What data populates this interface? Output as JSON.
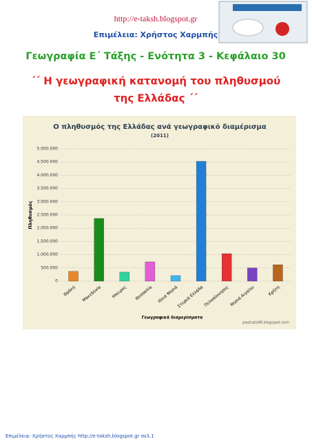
{
  "header": {
    "url": "http://e-taksh.blogspot.gr",
    "editor": "Επιμέλεια: Χρήστος Χαρμπής",
    "subject": "Γεωγραφία Ε΄ Τάξης - Ενότητα 3 - Κεφάλαιο 30",
    "title_line1": "΄΄ Η γεωγραφική κατανομή του πληθυσμού",
    "title_line2": "της Ελλάδας ΄΄"
  },
  "chart_data": {
    "type": "bar",
    "title": "Ο πληθυσμός της Ελλάδας ανά γεωγραφικό διαμέρισμα",
    "subtitle": "(2011)",
    "y_label": "Πληθυσμός",
    "x_label": "Γεωγραφικά διαμερίσματα",
    "watermark": "podcats98.blogspot.com",
    "categories": [
      "Θράκη",
      "Μακεδονία",
      "Ήπειρος",
      "Θεσσαλία",
      "Ιόνια Νησιά",
      "Στερεά Ελλάδα",
      "Πελοπόννησος",
      "Νησιά Αιγαίου",
      "Κρήτη"
    ],
    "values": [
      370000,
      2370000,
      340000,
      730000,
      210000,
      4530000,
      1040000,
      500000,
      620000
    ],
    "colors": [
      "#e8862a",
      "#1a8c1a",
      "#33d1a0",
      "#e45ed6",
      "#3cb6f2",
      "#1f80d8",
      "#e63232",
      "#7b43c2",
      "#b8651f"
    ],
    "ylim": [
      0,
      5000000
    ],
    "yticks": [
      0,
      {
        "value": 500000,
        "label": "500.000"
      },
      {
        "value": 1000000,
        "label": "1.000.000"
      },
      {
        "value": 1500000,
        "label": "1.500.000"
      },
      {
        "value": 2000000,
        "label": "2.000.000"
      },
      {
        "value": 2500000,
        "label": "2.500.000"
      },
      {
        "value": 3000000,
        "label": "3.000.000"
      },
      {
        "value": 3500000,
        "label": "3.500.000"
      },
      {
        "value": 4000000,
        "label": "4.000.000"
      },
      {
        "value": 4500000,
        "label": "4.500.000"
      },
      {
        "value": 5000000,
        "label": "5.000.000"
      }
    ],
    "grid": true
  },
  "footer": "Επιμέλεια: Χρήστος Χαρμπής http://e-taksh.blogspot.gr   σελ.1"
}
